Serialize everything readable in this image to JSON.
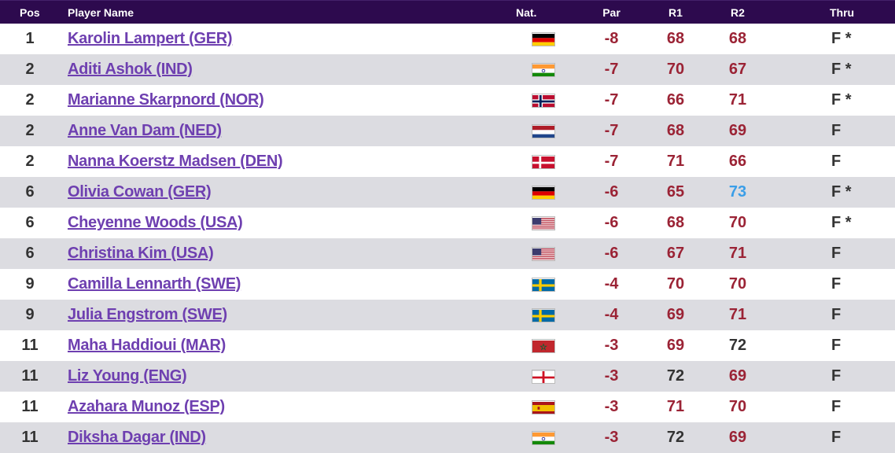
{
  "header": {
    "pos": "Pos",
    "name": "Player Name",
    "nat": "Nat.",
    "par": "Par",
    "r1": "R1",
    "r2": "R2",
    "thru": "Thru"
  },
  "colors": {
    "header_bg": "#2d0a4e",
    "row_alt": "#dcdce1",
    "name_link": "#6e3fb0",
    "score_over": "#333333",
    "score_under": "#9b2335",
    "score_highlight": "#3a9ee8"
  },
  "rows": [
    {
      "pos": "1",
      "name": "Karolin Lampert (GER)",
      "flag": "germany",
      "par": "-8",
      "r1": "68",
      "r2": "68",
      "r1_color": "#9b2335",
      "r2_color": "#9b2335",
      "thru": "F *"
    },
    {
      "pos": "2",
      "name": "Aditi Ashok (IND)",
      "flag": "india",
      "par": "-7",
      "r1": "70",
      "r2": "67",
      "r1_color": "#9b2335",
      "r2_color": "#9b2335",
      "thru": "F *"
    },
    {
      "pos": "2",
      "name": "Marianne Skarpnord (NOR)",
      "flag": "norway",
      "par": "-7",
      "r1": "66",
      "r2": "71",
      "r1_color": "#9b2335",
      "r2_color": "#9b2335",
      "thru": "F *"
    },
    {
      "pos": "2",
      "name": "Anne Van Dam (NED)",
      "flag": "netherlands",
      "par": "-7",
      "r1": "68",
      "r2": "69",
      "r1_color": "#9b2335",
      "r2_color": "#9b2335",
      "thru": "F"
    },
    {
      "pos": "2",
      "name": "Nanna Koerstz Madsen (DEN)",
      "flag": "denmark",
      "par": "-7",
      "r1": "71",
      "r2": "66",
      "r1_color": "#9b2335",
      "r2_color": "#9b2335",
      "thru": "F"
    },
    {
      "pos": "6",
      "name": "Olivia Cowan (GER)",
      "flag": "germany",
      "par": "-6",
      "r1": "65",
      "r2": "73",
      "r1_color": "#9b2335",
      "r2_color": "#3a9ee8",
      "thru": "F *"
    },
    {
      "pos": "6",
      "name": "Cheyenne Woods (USA)",
      "flag": "usa",
      "par": "-6",
      "r1": "68",
      "r2": "70",
      "r1_color": "#9b2335",
      "r2_color": "#9b2335",
      "thru": "F *"
    },
    {
      "pos": "6",
      "name": "Christina Kim (USA)",
      "flag": "usa",
      "par": "-6",
      "r1": "67",
      "r2": "71",
      "r1_color": "#9b2335",
      "r2_color": "#9b2335",
      "thru": "F"
    },
    {
      "pos": "9",
      "name": "Camilla Lennarth (SWE)",
      "flag": "sweden",
      "par": "-4",
      "r1": "70",
      "r2": "70",
      "r1_color": "#9b2335",
      "r2_color": "#9b2335",
      "thru": "F"
    },
    {
      "pos": "9",
      "name": "Julia Engstrom (SWE)",
      "flag": "sweden",
      "par": "-4",
      "r1": "69",
      "r2": "71",
      "r1_color": "#9b2335",
      "r2_color": "#9b2335",
      "thru": "F"
    },
    {
      "pos": "11",
      "name": "Maha Haddioui (MAR)",
      "flag": "morocco",
      "par": "-3",
      "r1": "69",
      "r2": "72",
      "r1_color": "#9b2335",
      "r2_color": "#333333",
      "thru": "F"
    },
    {
      "pos": "11",
      "name": "Liz Young (ENG)",
      "flag": "england",
      "par": "-3",
      "r1": "72",
      "r2": "69",
      "r1_color": "#333333",
      "r2_color": "#9b2335",
      "thru": "F"
    },
    {
      "pos": "11",
      "name": "Azahara Munoz (ESP)",
      "flag": "spain",
      "par": "-3",
      "r1": "71",
      "r2": "70",
      "r1_color": "#9b2335",
      "r2_color": "#9b2335",
      "thru": "F"
    },
    {
      "pos": "11",
      "name": "Diksha Dagar (IND)",
      "flag": "india",
      "par": "-3",
      "r1": "72",
      "r2": "69",
      "r1_color": "#333333",
      "r2_color": "#9b2335",
      "thru": "F"
    }
  ]
}
